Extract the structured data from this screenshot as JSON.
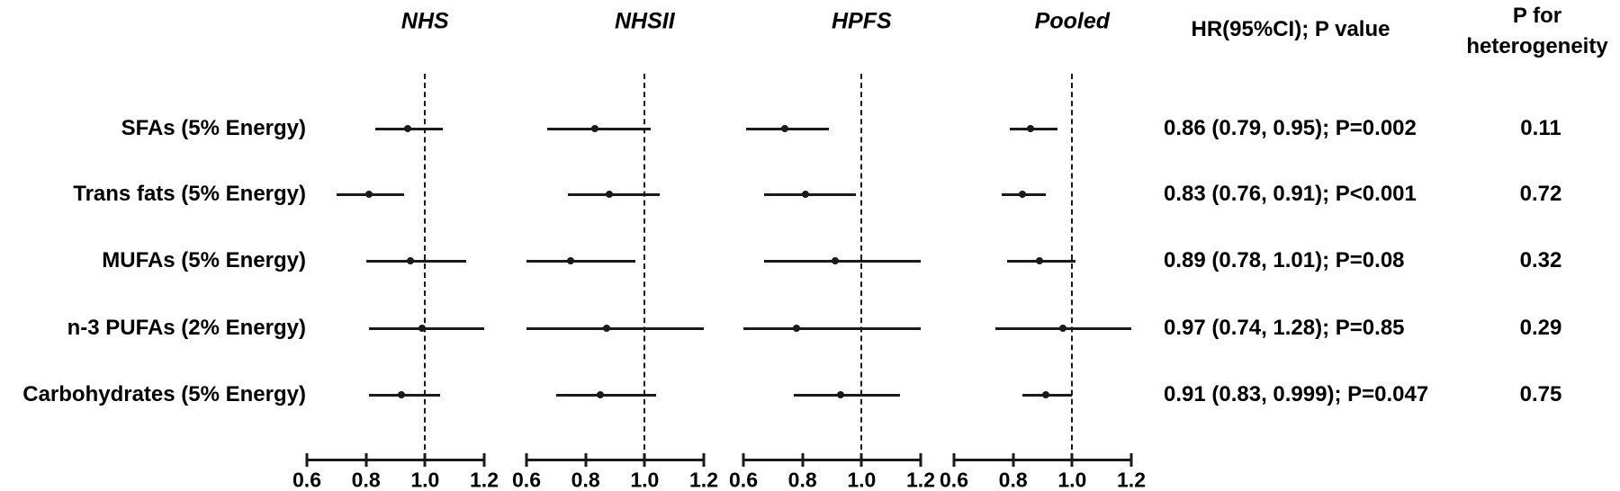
{
  "header": {
    "hr_label": "HR(95%CI);  P value",
    "phet_line1": "P for",
    "phet_line2": "heterogeneity"
  },
  "colors": {
    "background": "#ffffff",
    "text": "#000000",
    "line": "#1a1a1a"
  },
  "chart_data": {
    "type": "forest",
    "panels": [
      "NHS",
      "NHSII",
      "HPFS",
      "Pooled"
    ],
    "axis": {
      "min": 0.6,
      "max": 1.2,
      "ticks": [
        0.6,
        0.8,
        1.0,
        1.2
      ],
      "tick_labels": [
        "0.6",
        "0.8",
        "1.0",
        "1.2"
      ],
      "reference_line": 1.0
    },
    "rows": [
      {
        "label": "SFAs (5% Energy)",
        "estimates": [
          {
            "panel": "NHS",
            "est": 0.94,
            "lo": 0.83,
            "hi": 1.06
          },
          {
            "panel": "NHSII",
            "est": 0.83,
            "lo": 0.67,
            "hi": 1.02
          },
          {
            "panel": "HPFS",
            "est": 0.74,
            "lo": 0.61,
            "hi": 0.89
          },
          {
            "panel": "Pooled",
            "est": 0.86,
            "lo": 0.79,
            "hi": 0.95
          }
        ],
        "hr_text": "0.86 (0.79, 0.95); P=0.002",
        "p_heterogeneity": "0.11"
      },
      {
        "label": "Trans fats (5% Energy)",
        "estimates": [
          {
            "panel": "NHS",
            "est": 0.81,
            "lo": 0.7,
            "hi": 0.93
          },
          {
            "panel": "NHSII",
            "est": 0.88,
            "lo": 0.74,
            "hi": 1.05
          },
          {
            "panel": "HPFS",
            "est": 0.81,
            "lo": 0.67,
            "hi": 0.98
          },
          {
            "panel": "Pooled",
            "est": 0.83,
            "lo": 0.76,
            "hi": 0.91
          }
        ],
        "hr_text": "0.83 (0.76, 0.91); P<0.001",
        "p_heterogeneity": "0.72"
      },
      {
        "label": "MUFAs (5% Energy)",
        "estimates": [
          {
            "panel": "NHS",
            "est": 0.95,
            "lo": 0.8,
            "hi": 1.14
          },
          {
            "panel": "NHSII",
            "est": 0.75,
            "lo": 0.6,
            "hi": 0.97
          },
          {
            "panel": "HPFS",
            "est": 0.91,
            "lo": 0.67,
            "hi": 1.2
          },
          {
            "panel": "Pooled",
            "est": 0.89,
            "lo": 0.78,
            "hi": 1.01
          }
        ],
        "hr_text": "0.89 (0.78, 1.01); P=0.08",
        "p_heterogeneity": "0.32"
      },
      {
        "label": "n-3 PUFAs (2% Energy)",
        "estimates": [
          {
            "panel": "NHS",
            "est": 0.99,
            "lo": 0.81,
            "hi": 1.2
          },
          {
            "panel": "NHSII",
            "est": 0.87,
            "lo": 0.6,
            "hi": 1.21
          },
          {
            "panel": "HPFS",
            "est": 0.78,
            "lo": 0.6,
            "hi": 1.2
          },
          {
            "panel": "Pooled",
            "est": 0.97,
            "lo": 0.74,
            "hi": 1.28
          }
        ],
        "hr_text": "0.97 (0.74, 1.28); P=0.85",
        "p_heterogeneity": "0.29"
      },
      {
        "label": "Carbohydrates (5% Energy)",
        "estimates": [
          {
            "panel": "NHS",
            "est": 0.92,
            "lo": 0.81,
            "hi": 1.05
          },
          {
            "panel": "NHSII",
            "est": 0.85,
            "lo": 0.7,
            "hi": 1.04
          },
          {
            "panel": "HPFS",
            "est": 0.93,
            "lo": 0.77,
            "hi": 1.13
          },
          {
            "panel": "Pooled",
            "est": 0.91,
            "lo": 0.83,
            "hi": 0.999
          }
        ],
        "hr_text": "0.91 (0.83, 0.999); P=0.047",
        "p_heterogeneity": "0.75"
      }
    ]
  }
}
